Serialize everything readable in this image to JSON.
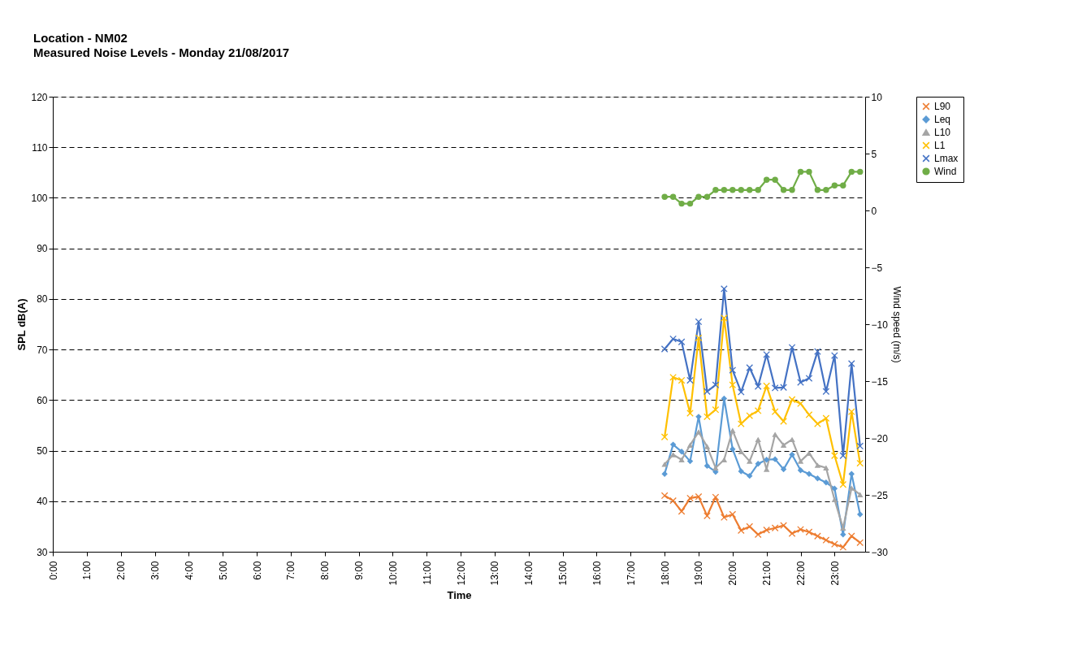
{
  "chart_data": {
    "type": "line",
    "title": "Location - NM02",
    "subtitle": "Measured Noise Levels - Monday 21/08/2017",
    "xlabel": "Time",
    "ylabel": "SPL dB(A)",
    "y2label": "Wind speed (m/s)",
    "x": [
      18,
      18.25,
      18.5,
      18.75,
      19,
      19.25,
      19.5,
      19.75,
      20,
      20.25,
      20.5,
      20.75,
      21,
      21.25,
      21.5,
      21.75,
      22,
      22.25,
      22.5,
      22.75,
      23,
      23.25,
      23.5,
      23.75
    ],
    "xlim": [
      0,
      23.9
    ],
    "xticks": [
      {
        "value": 0,
        "label": "0:00"
      },
      {
        "value": 1,
        "label": "1:00"
      },
      {
        "value": 2,
        "label": "2:00"
      },
      {
        "value": 3,
        "label": "3:00"
      },
      {
        "value": 4,
        "label": "4:00"
      },
      {
        "value": 5,
        "label": "5:00"
      },
      {
        "value": 6,
        "label": "6:00"
      },
      {
        "value": 7,
        "label": "7:00"
      },
      {
        "value": 8,
        "label": "8:00"
      },
      {
        "value": 9,
        "label": "9:00"
      },
      {
        "value": 10,
        "label": "10:00"
      },
      {
        "value": 11,
        "label": "11:00"
      },
      {
        "value": 12,
        "label": "12:00"
      },
      {
        "value": 13,
        "label": "13:00"
      },
      {
        "value": 14,
        "label": "14:00"
      },
      {
        "value": 15,
        "label": "15:00"
      },
      {
        "value": 16,
        "label": "16:00"
      },
      {
        "value": 17,
        "label": "17:00"
      },
      {
        "value": 18,
        "label": "18:00"
      },
      {
        "value": 19,
        "label": "19:00"
      },
      {
        "value": 20,
        "label": "20:00"
      },
      {
        "value": 21,
        "label": "21:00"
      },
      {
        "value": 22,
        "label": "22:00"
      },
      {
        "value": 23,
        "label": "23:00"
      }
    ],
    "ylim": [
      30,
      120
    ],
    "yticks": [
      30,
      40,
      50,
      60,
      70,
      80,
      90,
      100,
      110,
      120
    ],
    "y2lim": [
      -30,
      10
    ],
    "y2ticks": [
      -30,
      -25,
      -20,
      -15,
      -10,
      -5,
      0,
      5,
      10
    ],
    "grid": "y",
    "legend": "right",
    "series": [
      {
        "name": "L90",
        "color": "#ed7d31",
        "marker": "cross",
        "values": [
          41.1,
          40.1,
          38.0,
          40.6,
          40.9,
          37.1,
          40.8,
          36.8,
          37.4,
          34.2,
          35.0,
          33.4,
          34.3,
          34.7,
          35.2,
          33.6,
          34.4,
          33.9,
          33.1,
          32.3,
          31.5,
          30.9,
          33.1,
          31.8
        ]
      },
      {
        "name": "Leq",
        "color": "#5b9bd5",
        "marker": "diamond",
        "values": [
          45.4,
          51.2,
          49.8,
          47.9,
          56.7,
          47.0,
          45.8,
          60.3,
          50.3,
          45.9,
          45.0,
          47.4,
          48.2,
          48.3,
          46.3,
          49.2,
          46.1,
          45.4,
          44.5,
          43.7,
          42.5,
          33.4,
          45.4,
          37.4
        ]
      },
      {
        "name": "L10",
        "color": "#a5a5a5",
        "marker": "triangle",
        "values": [
          47.3,
          49.2,
          48.2,
          51.1,
          53.7,
          50.8,
          46.6,
          48.2,
          54.0,
          49.8,
          47.9,
          52.2,
          46.3,
          53.2,
          51.1,
          52.2,
          47.9,
          49.5,
          47.1,
          46.6,
          40.3,
          34.7,
          42.6,
          41.3
        ]
      },
      {
        "name": "L1",
        "color": "#ffc000",
        "marker": "cross",
        "values": [
          52.7,
          64.5,
          63.9,
          57.4,
          72.3,
          56.7,
          58.1,
          76.2,
          63.0,
          55.3,
          56.9,
          57.9,
          62.8,
          57.7,
          55.8,
          60.1,
          59.3,
          57.1,
          55.3,
          56.4,
          49.0,
          43.3,
          57.7,
          47.5
        ]
      },
      {
        "name": "Lmax",
        "color": "#4472c4",
        "marker": "cross",
        "values": [
          70.1,
          72.1,
          71.5,
          63.9,
          75.5,
          61.7,
          63.0,
          82.0,
          65.9,
          61.6,
          66.4,
          62.7,
          69.0,
          62.4,
          62.5,
          70.4,
          63.5,
          64.3,
          69.6,
          61.7,
          68.8,
          49.0,
          67.2,
          50.9
        ]
      },
      {
        "name": "Wind",
        "color": "#70ad47",
        "marker": "circle",
        "axis": "y2",
        "values": [
          1.2,
          1.2,
          0.6,
          0.6,
          1.2,
          1.2,
          1.8,
          1.8,
          1.8,
          1.8,
          1.8,
          1.8,
          2.7,
          2.7,
          1.8,
          1.8,
          3.4,
          3.4,
          1.8,
          1.8,
          2.2,
          2.2,
          3.4,
          3.4
        ]
      }
    ]
  }
}
